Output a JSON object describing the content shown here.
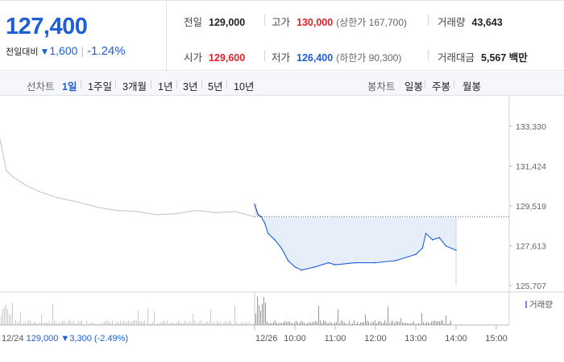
{
  "quote": {
    "price": "127,400",
    "change_label": "전일대비",
    "change_arrow": "▼",
    "change_value": "1,600",
    "change_pct": "-1.24%"
  },
  "stats": {
    "prev_label": "전일",
    "prev_value": "129,000",
    "high_label": "고가",
    "high_value": "130,000",
    "upper_limit": "(상한가 167,700)",
    "volume_label": "거래량",
    "volume_value": "43,643",
    "open_label": "시가",
    "open_value": "129,600",
    "low_label": "저가",
    "low_value": "126,400",
    "lower_limit": "(하한가 90,300)",
    "amount_label": "거래대금",
    "amount_value": "5,567 백만"
  },
  "periods": {
    "label": "선차트",
    "options": [
      "1일",
      "1주일",
      "3개월",
      "1년",
      "3년",
      "5년",
      "10년"
    ],
    "selected": "1일"
  },
  "candles": {
    "label": "봉차트",
    "options": [
      "일봉",
      "주봉",
      "월봉"
    ]
  },
  "colors": {
    "up": "#e0212b",
    "down": "#1d5fd6",
    "prev_day_line": "#c8c8c8",
    "today_line": "#1d5fd6",
    "fill": "#e6eefa",
    "volume": "#8a8a8a",
    "volume_today": "#7b6fc9"
  },
  "chart_data": {
    "type": "line",
    "y_ticks": [
      "133,330",
      "131,424",
      "129,519",
      "127,613",
      "125,707"
    ],
    "ylim": [
      125707,
      133330
    ],
    "reference_price": 129000,
    "x_tick_labels": [
      "12/26",
      "10:00",
      "11:00",
      "12:00",
      "13:00",
      "14:00",
      "15:00"
    ],
    "volume_label": "거래량",
    "prev_day_footer": {
      "date": "12/24",
      "close": "129,000",
      "arrow": "▼",
      "change": "3,300",
      "pct": "(-2.49%)"
    },
    "series": [
      {
        "day": "12/24",
        "points": [
          [
            "09:00",
            132700
          ],
          [
            "09:10",
            131200
          ],
          [
            "09:20",
            130900
          ],
          [
            "09:40",
            130500
          ],
          [
            "10:00",
            130200
          ],
          [
            "10:30",
            129900
          ],
          [
            "11:00",
            129700
          ],
          [
            "11:30",
            129450
          ],
          [
            "12:00",
            129300
          ],
          [
            "12:30",
            129250
          ],
          [
            "13:00",
            129100
          ],
          [
            "13:30",
            129150
          ],
          [
            "14:00",
            129300
          ],
          [
            "14:30",
            129200
          ],
          [
            "15:00",
            129250
          ],
          [
            "15:30",
            129000
          ]
        ]
      },
      {
        "day": "12/26",
        "points": [
          [
            "09:00",
            129600
          ],
          [
            "09:05",
            129100
          ],
          [
            "09:10",
            129000
          ],
          [
            "09:15",
            128700
          ],
          [
            "09:20",
            128200
          ],
          [
            "09:30",
            127900
          ],
          [
            "09:40",
            127500
          ],
          [
            "09:50",
            126900
          ],
          [
            "10:00",
            126600
          ],
          [
            "10:10",
            126450
          ],
          [
            "10:30",
            126600
          ],
          [
            "10:50",
            126800
          ],
          [
            "11:00",
            126700
          ],
          [
            "11:30",
            126800
          ],
          [
            "12:00",
            126800
          ],
          [
            "12:30",
            126900
          ],
          [
            "13:00",
            127200
          ],
          [
            "13:10",
            127500
          ],
          [
            "13:15",
            128200
          ],
          [
            "13:25",
            127900
          ],
          [
            "13:35",
            128000
          ],
          [
            "13:45",
            127600
          ],
          [
            "14:00",
            127400
          ]
        ]
      }
    ]
  }
}
